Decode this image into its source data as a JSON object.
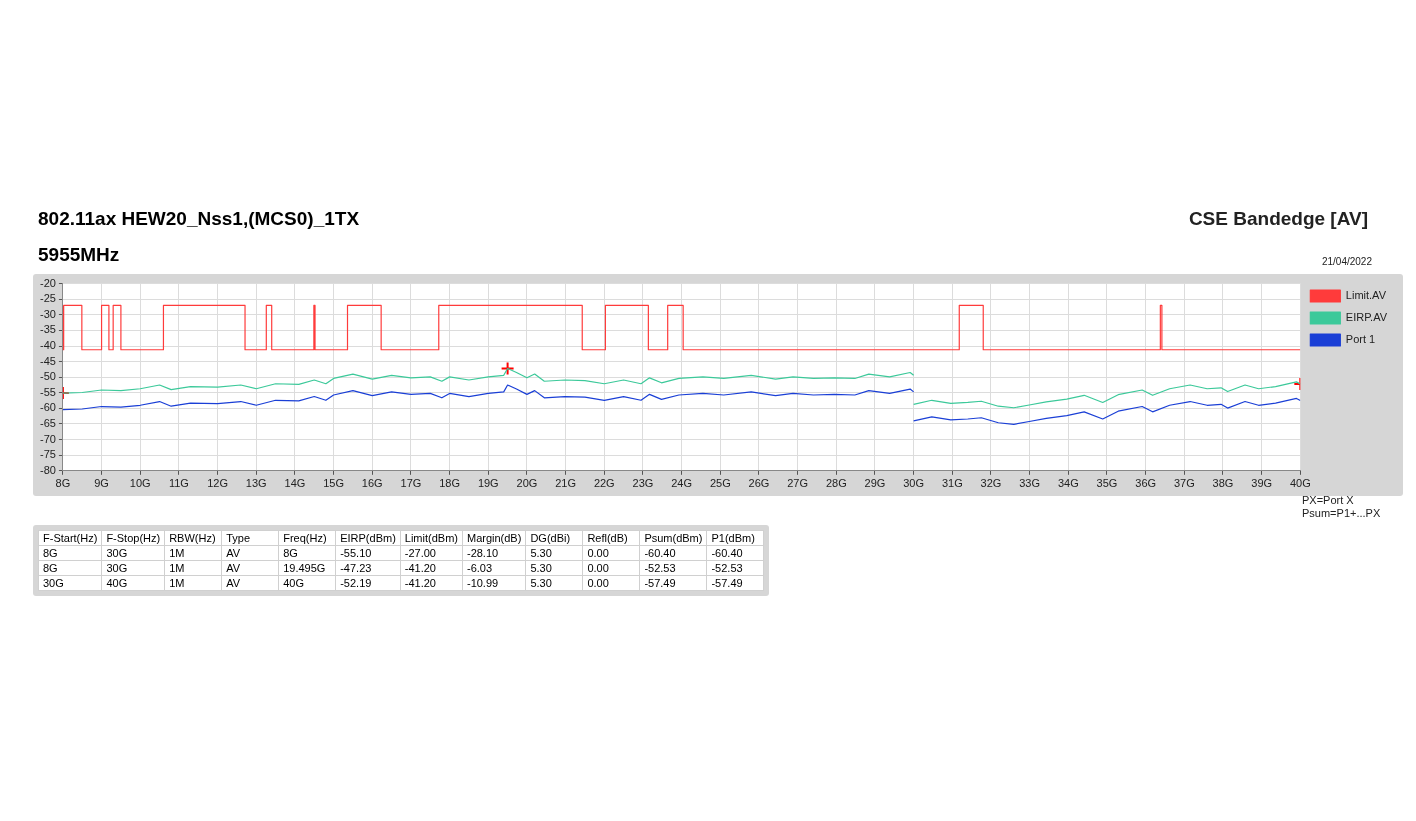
{
  "chart_data": [
    {
      "type": "line",
      "title": "802.11ax HEW20_Nss1,(MCS0)_1TX",
      "subtitle": "5955MHz",
      "annotations": [
        "CSE Bandedge [AV]",
        "21/04/2022",
        "PX=Port X",
        "Psum=P1+...PX"
      ],
      "xlim": [
        8,
        40
      ],
      "xticks": [
        {
          "value": 8,
          "label": "8G"
        },
        {
          "value": 9,
          "label": "9G"
        },
        {
          "value": 10,
          "label": "10G"
        },
        {
          "value": 11,
          "label": "11G"
        },
        {
          "value": 12,
          "label": "12G"
        },
        {
          "value": 13,
          "label": "13G"
        },
        {
          "value": 14,
          "label": "14G"
        },
        {
          "value": 15,
          "label": "15G"
        },
        {
          "value": 16,
          "label": "16G"
        },
        {
          "value": 17,
          "label": "17G"
        },
        {
          "value": 18,
          "label": "18G"
        },
        {
          "value": 19,
          "label": "19G"
        },
        {
          "value": 20,
          "label": "20G"
        },
        {
          "value": 21,
          "label": "21G"
        },
        {
          "value": 22,
          "label": "22G"
        },
        {
          "value": 23,
          "label": "23G"
        },
        {
          "value": 24,
          "label": "24G"
        },
        {
          "value": 25,
          "label": "25G"
        },
        {
          "value": 26,
          "label": "26G"
        },
        {
          "value": 27,
          "label": "27G"
        },
        {
          "value": 28,
          "label": "28G"
        },
        {
          "value": 29,
          "label": "29G"
        },
        {
          "value": 30,
          "label": "30G"
        },
        {
          "value": 31,
          "label": "31G"
        },
        {
          "value": 32,
          "label": "32G"
        },
        {
          "value": 33,
          "label": "33G"
        },
        {
          "value": 34,
          "label": "34G"
        },
        {
          "value": 35,
          "label": "35G"
        },
        {
          "value": 36,
          "label": "36G"
        },
        {
          "value": 37,
          "label": "37G"
        },
        {
          "value": 38,
          "label": "38G"
        },
        {
          "value": 39,
          "label": "39G"
        },
        {
          "value": 40,
          "label": "40G"
        }
      ],
      "ylim": [
        -80,
        -20
      ],
      "yticks": [
        -80,
        -75,
        -70,
        -65,
        -60,
        -55,
        -50,
        -45,
        -40,
        -35,
        -30,
        -25,
        -20
      ],
      "grid": true,
      "legend": "top right",
      "marker": "none",
      "series": [
        {
          "name": "Limit.AV",
          "type": "step",
          "color": "#ff3b3b",
          "x": [
            8,
            8.02,
            8.49,
            9,
            9.19,
            9.3,
            9.5,
            10.6,
            12.71,
            13.26,
            13.4,
            14.49,
            14.52,
            15.36,
            16.23,
            17.72,
            21.43,
            22.03,
            23.14,
            23.64,
            24.04,
            31.18,
            31.8,
            36.38,
            36.42,
            38.5,
            40
          ],
          "values": [
            -27,
            -41.2,
            -27,
            -41.2,
            -27,
            -41.2,
            -27,
            -41.2,
            -27,
            -41.2,
            -27,
            -41.2,
            -27,
            -41.2,
            -27,
            -41.2,
            -27,
            -41.2,
            -27,
            -41.2,
            -27,
            -41.2,
            -27,
            -41.2,
            -27,
            -41.2,
            -41.2
          ]
        },
        {
          "name": "EIRP.AV",
          "type": "line",
          "color": "#3cc99a",
          "x": [
            8,
            8.5,
            9,
            9.5,
            10,
            10.5,
            10.8,
            11.3,
            12,
            12.6,
            13,
            13.5,
            14.1,
            14.5,
            14.8,
            15,
            15.5,
            16,
            16.5,
            17,
            17.5,
            17.8,
            18,
            18.5,
            19,
            19.4,
            19.5,
            19.73,
            20,
            20.2,
            20.45,
            20.98,
            21.5,
            22,
            22.5,
            22.95,
            23.17,
            23.48,
            23.93,
            24.55,
            25.09,
            25.8,
            26.43,
            26.88,
            27.41,
            27.95,
            28.48,
            28.84,
            29.38,
            29.91,
            30
          ],
          "values": [
            -55.1,
            -54.9,
            -54.1,
            -54.3,
            -53.7,
            -52.5,
            -54.0,
            -53.0,
            -53.2,
            -52.5,
            -53.7,
            -52.1,
            -52.3,
            -50.9,
            -52.1,
            -50.4,
            -49.0,
            -50.6,
            -49.4,
            -50.2,
            -49.9,
            -51.3,
            -49.9,
            -50.9,
            -49.9,
            -49.4,
            -47.2,
            -48.5,
            -50.2,
            -49.0,
            -51.3,
            -50.9,
            -51.1,
            -52.1,
            -50.9,
            -52.1,
            -50.2,
            -51.8,
            -50.4,
            -49.9,
            -50.4,
            -49.4,
            -50.6,
            -49.9,
            -50.4,
            -50.2,
            -50.4,
            -49.0,
            -49.9,
            -48.5,
            -49.4
          ]
        },
        {
          "name": "Port 1",
          "type": "line",
          "color": "#1a3fd6",
          "x": [
            8,
            8.5,
            9,
            9.5,
            10,
            10.5,
            10.8,
            11.3,
            12,
            12.6,
            13,
            13.5,
            14.1,
            14.5,
            14.8,
            15,
            15.5,
            16,
            16.5,
            17,
            17.5,
            17.8,
            18,
            18.5,
            19,
            19.4,
            19.5,
            19.73,
            20,
            20.2,
            20.45,
            20.98,
            21.5,
            22,
            22.5,
            22.95,
            23.17,
            23.48,
            23.93,
            24.55,
            25.09,
            25.8,
            26.43,
            26.88,
            27.41,
            27.95,
            28.48,
            28.84,
            29.38,
            29.91,
            30
          ],
          "values": [
            -60.4,
            -60.2,
            -59.4,
            -59.6,
            -59.0,
            -57.8,
            -59.3,
            -58.3,
            -58.5,
            -57.8,
            -59.0,
            -57.4,
            -57.6,
            -56.2,
            -57.4,
            -55.7,
            -54.3,
            -55.9,
            -54.7,
            -55.5,
            -55.2,
            -56.6,
            -55.2,
            -56.2,
            -55.2,
            -54.7,
            -52.5,
            -53.8,
            -55.5,
            -54.3,
            -56.6,
            -56.2,
            -56.4,
            -57.4,
            -56.2,
            -57.4,
            -55.5,
            -57.1,
            -55.7,
            -55.2,
            -55.7,
            -54.7,
            -55.9,
            -55.2,
            -55.7,
            -55.5,
            -55.7,
            -54.3,
            -55.2,
            -53.8,
            -54.7
          ]
        },
        {
          "type": "line",
          "color": "#3cc99a",
          "x": [
            30,
            30.47,
            30.96,
            31.4,
            31.75,
            32.19,
            32.59,
            32.99,
            33.43,
            33.96,
            34.41,
            34.89,
            35.29,
            35.91,
            36.18,
            36.62,
            37.15,
            37.59,
            37.95,
            38.12,
            38.57,
            38.92,
            39.36,
            39.9,
            40
          ],
          "values": [
            -58.7,
            -57.4,
            -58.4,
            -58.1,
            -57.7,
            -59.3,
            -59.8,
            -58.9,
            -57.9,
            -57.0,
            -55.8,
            -58.1,
            -55.6,
            -54.1,
            -55.8,
            -53.7,
            -52.5,
            -53.7,
            -53.4,
            -54.6,
            -52.5,
            -53.7,
            -53.0,
            -51.5,
            -52.2
          ]
        },
        {
          "type": "line",
          "color": "#1a3fd6",
          "x": [
            30,
            30.47,
            30.96,
            31.4,
            31.75,
            32.19,
            32.59,
            32.99,
            33.43,
            33.96,
            34.41,
            34.89,
            35.29,
            35.91,
            36.18,
            36.62,
            37.15,
            37.59,
            37.95,
            38.12,
            38.57,
            38.92,
            39.36,
            39.9,
            40
          ],
          "values": [
            -64.0,
            -62.7,
            -63.7,
            -63.4,
            -63.0,
            -64.6,
            -65.1,
            -64.2,
            -63.2,
            -62.3,
            -61.1,
            -63.4,
            -60.9,
            -59.4,
            -61.1,
            -59.0,
            -57.8,
            -59.0,
            -58.7,
            -59.9,
            -57.8,
            -59.0,
            -58.3,
            -56.8,
            -57.5
          ]
        },
        {
          "type": "scatter",
          "marker": "cross",
          "color": "#ff0000",
          "x": [
            8,
            19.5,
            40
          ],
          "values": [
            -55.1,
            -47.2,
            -52.2
          ]
        }
      ]
    },
    {
      "type": "other",
      "categories": [
        "F-Start(Hz)",
        "F-Stop(Hz)",
        "RBW(Hz)",
        "Type",
        "Freq(Hz)",
        "EIRP(dBm)",
        "Limit(dBm)",
        "Margin(dB)",
        "DG(dBi)",
        "Refl(dB)",
        "Psum(dBm)",
        "P1(dBm)"
      ],
      "cell_labels": [
        [
          "8G",
          "30G",
          "1M",
          "AV",
          "8G",
          "-55.10",
          "-27.00",
          "-28.10",
          "5.30",
          "0.00",
          "-60.40",
          "-60.40"
        ],
        [
          "8G",
          "30G",
          "1M",
          "AV",
          "19.495G",
          "-47.23",
          "-41.20",
          "-6.03",
          "5.30",
          "0.00",
          "-52.53",
          "-52.53"
        ],
        [
          "30G",
          "40G",
          "1M",
          "AV",
          "40G",
          "-52.19",
          "-41.20",
          "-10.99",
          "5.30",
          "0.00",
          "-57.49",
          "-57.49"
        ]
      ]
    }
  ]
}
